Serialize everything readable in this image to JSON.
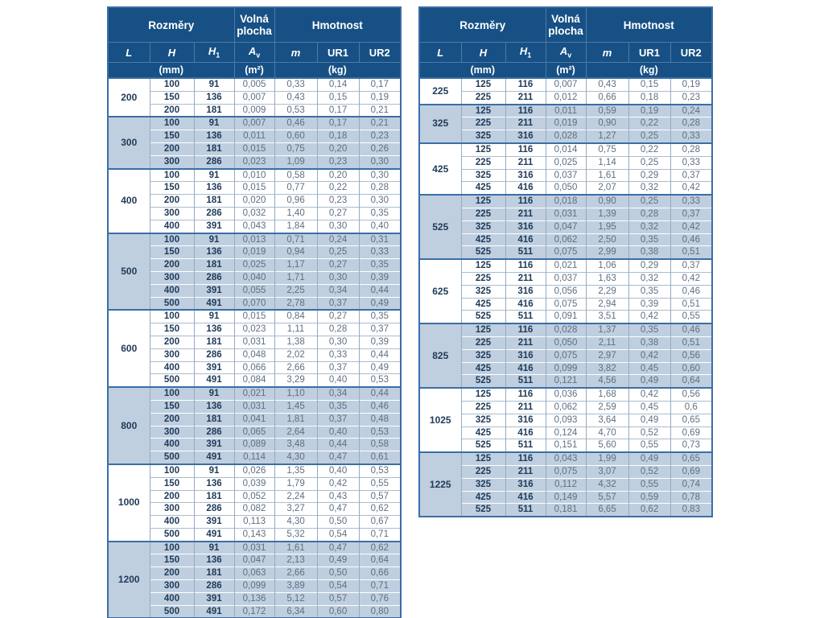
{
  "palette": {
    "header_bg": "#175084",
    "header_text": "#ffffff",
    "shaded_row_bg": "#bfcfe0",
    "dimension_text": "#1f3a57",
    "value_text": "#5f6f80",
    "grid_line": "#93abc3",
    "group_line": "#3a6ea5"
  },
  "header": {
    "rozmery": "Rozměry",
    "volna_plocha": "Volná plocha",
    "hmotnost": "Hmotnost",
    "columns": [
      {
        "text": "L",
        "sub": ""
      },
      {
        "text": "H",
        "sub": ""
      },
      {
        "text": "H",
        "sub": "1"
      },
      {
        "text": "A",
        "sub": "v"
      },
      {
        "text": "m",
        "sub": ""
      },
      {
        "text": "UR1",
        "sub": ""
      },
      {
        "text": "UR2",
        "sub": ""
      }
    ],
    "units": [
      {
        "text": "(mm)",
        "span": 3
      },
      {
        "text": "(m²)",
        "span": 1
      },
      {
        "text": "(kg)",
        "span": 3
      }
    ]
  },
  "tables": [
    {
      "name": "left",
      "groups": [
        {
          "l": "200",
          "rows": [
            [
              "100",
              "91",
              "0,005",
              "0,33",
              "0,14",
              "0,17"
            ],
            [
              "150",
              "136",
              "0,007",
              "0,43",
              "0,15",
              "0,19"
            ],
            [
              "200",
              "181",
              "0,009",
              "0,53",
              "0,17",
              "0,21"
            ]
          ]
        },
        {
          "l": "300",
          "rows": [
            [
              "100",
              "91",
              "0,007",
              "0,46",
              "0,17",
              "0,21"
            ],
            [
              "150",
              "136",
              "0,011",
              "0,60",
              "0,18",
              "0,23"
            ],
            [
              "200",
              "181",
              "0,015",
              "0,75",
              "0,20",
              "0,26"
            ],
            [
              "300",
              "286",
              "0,023",
              "1,09",
              "0,23",
              "0,30"
            ]
          ]
        },
        {
          "l": "400",
          "rows": [
            [
              "100",
              "91",
              "0,010",
              "0,58",
              "0,20",
              "0,30"
            ],
            [
              "150",
              "136",
              "0,015",
              "0,77",
              "0,22",
              "0,28"
            ],
            [
              "200",
              "181",
              "0,020",
              "0,96",
              "0,23",
              "0,30"
            ],
            [
              "300",
              "286",
              "0,032",
              "1,40",
              "0,27",
              "0,35"
            ],
            [
              "400",
              "391",
              "0,043",
              "1,84",
              "0,30",
              "0,40"
            ]
          ]
        },
        {
          "l": "500",
          "rows": [
            [
              "100",
              "91",
              "0,013",
              "0,71",
              "0,24",
              "0,31"
            ],
            [
              "150",
              "136",
              "0,019",
              "0,94",
              "0,25",
              "0,33"
            ],
            [
              "200",
              "181",
              "0,025",
              "1,17",
              "0,27",
              "0,35"
            ],
            [
              "300",
              "286",
              "0,040",
              "1,71",
              "0,30",
              "0,39"
            ],
            [
              "400",
              "391",
              "0,055",
              "2,25",
              "0,34",
              "0,44"
            ],
            [
              "500",
              "491",
              "0,070",
              "2,78",
              "0,37",
              "0,49"
            ]
          ]
        },
        {
          "l": "600",
          "rows": [
            [
              "100",
              "91",
              "0,015",
              "0,84",
              "0,27",
              "0,35"
            ],
            [
              "150",
              "136",
              "0,023",
              "1,11",
              "0,28",
              "0,37"
            ],
            [
              "200",
              "181",
              "0,031",
              "1,38",
              "0,30",
              "0,39"
            ],
            [
              "300",
              "286",
              "0,048",
              "2,02",
              "0,33",
              "0,44"
            ],
            [
              "400",
              "391",
              "0,066",
              "2,66",
              "0,37",
              "0,49"
            ],
            [
              "500",
              "491",
              "0,084",
              "3,29",
              "0,40",
              "0,53"
            ]
          ]
        },
        {
          "l": "800",
          "rows": [
            [
              "100",
              "91",
              "0,021",
              "1,10",
              "0,34",
              "0,44"
            ],
            [
              "150",
              "136",
              "0,031",
              "1,45",
              "0,35",
              "0,46"
            ],
            [
              "200",
              "181",
              "0,041",
              "1,81",
              "0,37",
              "0,48"
            ],
            [
              "300",
              "286",
              "0,065",
              "2,64",
              "0,40",
              "0,53"
            ],
            [
              "400",
              "391",
              "0,089",
              "3,48",
              "0,44",
              "0,58"
            ],
            [
              "500",
              "491",
              "0,114",
              "4,30",
              "0,47",
              "0,61"
            ]
          ]
        },
        {
          "l": "1000",
          "rows": [
            [
              "100",
              "91",
              "0,026",
              "1,35",
              "0,40",
              "0,53"
            ],
            [
              "150",
              "136",
              "0,039",
              "1,79",
              "0,42",
              "0,55"
            ],
            [
              "200",
              "181",
              "0,052",
              "2,24",
              "0,43",
              "0,57"
            ],
            [
              "300",
              "286",
              "0,082",
              "3,27",
              "0,47",
              "0,62"
            ],
            [
              "400",
              "391",
              "0,113",
              "4,30",
              "0,50",
              "0,67"
            ],
            [
              "500",
              "491",
              "0,143",
              "5,32",
              "0,54",
              "0,71"
            ]
          ]
        },
        {
          "l": "1200",
          "rows": [
            [
              "100",
              "91",
              "0,031",
              "1,61",
              "0,47",
              "0,62"
            ],
            [
              "150",
              "136",
              "0,047",
              "2,13",
              "0,49",
              "0,64"
            ],
            [
              "200",
              "181",
              "0,063",
              "2,66",
              "0,50",
              "0,66"
            ],
            [
              "300",
              "286",
              "0,099",
              "3,89",
              "0,54",
              "0,71"
            ],
            [
              "400",
              "391",
              "0,136",
              "5,12",
              "0,57",
              "0,76"
            ],
            [
              "500",
              "491",
              "0,172",
              "6,34",
              "0,60",
              "0,80"
            ]
          ]
        }
      ]
    },
    {
      "name": "right",
      "groups": [
        {
          "l": "225",
          "rows": [
            [
              "125",
              "116",
              "0,007",
              "0,43",
              "0,15",
              "0,19"
            ],
            [
              "225",
              "211",
              "0,012",
              "0,66",
              "0,18",
              "0,23"
            ]
          ]
        },
        {
          "l": "325",
          "rows": [
            [
              "125",
              "116",
              "0,011",
              "0,59",
              "0,19",
              "0,24"
            ],
            [
              "225",
              "211",
              "0,019",
              "0,90",
              "0,22",
              "0,28"
            ],
            [
              "325",
              "316",
              "0,028",
              "1,27",
              "0,25",
              "0,33"
            ]
          ]
        },
        {
          "l": "425",
          "rows": [
            [
              "125",
              "116",
              "0,014",
              "0,75",
              "0,22",
              "0,28"
            ],
            [
              "225",
              "211",
              "0,025",
              "1,14",
              "0,25",
              "0,33"
            ],
            [
              "325",
              "316",
              "0,037",
              "1,61",
              "0,29",
              "0,37"
            ],
            [
              "425",
              "416",
              "0,050",
              "2,07",
              "0,32",
              "0,42"
            ]
          ]
        },
        {
          "l": "525",
          "rows": [
            [
              "125",
              "116",
              "0,018",
              "0,90",
              "0,25",
              "0,33"
            ],
            [
              "225",
              "211",
              "0,031",
              "1,39",
              "0,28",
              "0,37"
            ],
            [
              "325",
              "316",
              "0,047",
              "1,95",
              "0,32",
              "0,42"
            ],
            [
              "425",
              "416",
              "0,062",
              "2,50",
              "0,35",
              "0,46"
            ],
            [
              "525",
              "511",
              "0,075",
              "2,99",
              "0,38",
              "0,51"
            ]
          ]
        },
        {
          "l": "625",
          "rows": [
            [
              "125",
              "116",
              "0,021",
              "1,06",
              "0,29",
              "0,37"
            ],
            [
              "225",
              "211",
              "0,037",
              "1,63",
              "0,32",
              "0,42"
            ],
            [
              "325",
              "316",
              "0,056",
              "2,29",
              "0,35",
              "0,46"
            ],
            [
              "425",
              "416",
              "0,075",
              "2,94",
              "0,39",
              "0,51"
            ],
            [
              "525",
              "511",
              "0,091",
              "3,51",
              "0,42",
              "0,55"
            ]
          ]
        },
        {
          "l": "825",
          "rows": [
            [
              "125",
              "116",
              "0,028",
              "1,37",
              "0,35",
              "0,46"
            ],
            [
              "225",
              "211",
              "0,050",
              "2,11",
              "0,38",
              "0,51"
            ],
            [
              "325",
              "316",
              "0,075",
              "2,97",
              "0,42",
              "0,56"
            ],
            [
              "425",
              "416",
              "0,099",
              "3,82",
              "0,45",
              "0,60"
            ],
            [
              "525",
              "511",
              "0,121",
              "4,56",
              "0,49",
              "0,64"
            ]
          ]
        },
        {
          "l": "1025",
          "rows": [
            [
              "125",
              "116",
              "0,036",
              "1,68",
              "0,42",
              "0,56"
            ],
            [
              "225",
              "211",
              "0,062",
              "2,59",
              "0,45",
              "0,6"
            ],
            [
              "325",
              "316",
              "0,093",
              "3,64",
              "0,49",
              "0,65"
            ],
            [
              "425",
              "416",
              "0,124",
              "4,70",
              "0,52",
              "0,69"
            ],
            [
              "525",
              "511",
              "0,151",
              "5,60",
              "0,55",
              "0,73"
            ]
          ]
        },
        {
          "l": "1225",
          "rows": [
            [
              "125",
              "116",
              "0,043",
              "1,99",
              "0,49",
              "0,65"
            ],
            [
              "225",
              "211",
              "0,075",
              "3,07",
              "0,52",
              "0,69"
            ],
            [
              "325",
              "316",
              "0,112",
              "4,32",
              "0,55",
              "0,74"
            ],
            [
              "425",
              "416",
              "0,149",
              "5,57",
              "0,59",
              "0,78"
            ],
            [
              "525",
              "511",
              "0,181",
              "6,65",
              "0,62",
              "0,83"
            ]
          ]
        }
      ]
    }
  ]
}
